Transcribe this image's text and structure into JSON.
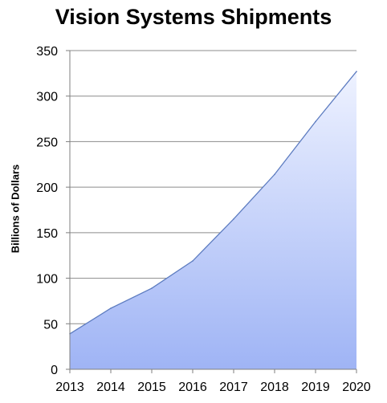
{
  "chart_data": {
    "type": "area",
    "title": "Vision Systems Shipments",
    "xlabel": "",
    "ylabel": "Billions of Dollars",
    "x": [
      "2013",
      "2014",
      "2015",
      "2016",
      "2017",
      "2018",
      "2019",
      "2020"
    ],
    "series": [
      {
        "values": [
          39,
          67,
          89,
          119,
          165,
          214,
          272,
          327
        ]
      }
    ],
    "ylim": [
      0,
      350
    ],
    "yticks": [
      0,
      50,
      100,
      150,
      200,
      250,
      300,
      350
    ],
    "grid": true,
    "legend": "none",
    "colors": {
      "fill_top": "#eef2ff",
      "fill_bottom": "#9fb4f5",
      "line": "#5d7cc0",
      "grid": "#8c8c8c",
      "axis": "#7f7f7f"
    }
  }
}
